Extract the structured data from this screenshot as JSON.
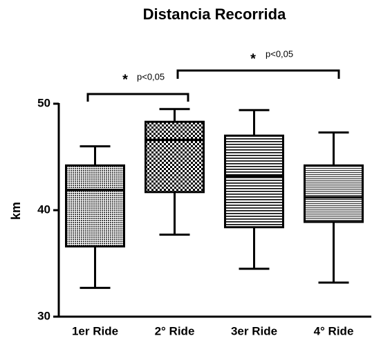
{
  "chart_data": {
    "type": "box",
    "title": "Distancia Recorrida",
    "ylabel": "km",
    "categories": [
      "1er Ride",
      "2° Ride",
      "3er Ride",
      "4° Ride"
    ],
    "min": [
      32.7,
      37.7,
      34.5,
      33.2
    ],
    "q1": [
      36.6,
      41.7,
      38.4,
      38.9
    ],
    "median": [
      41.9,
      46.6,
      43.2,
      41.2
    ],
    "q3": [
      44.2,
      48.3,
      47.0,
      44.2
    ],
    "max": [
      46.0,
      49.5,
      49.4,
      47.3
    ],
    "ylim": [
      30,
      50
    ],
    "yticks": [
      30,
      40,
      50
    ],
    "annotations": [
      {
        "star": "*",
        "text": "p<0,05"
      },
      {
        "star": "*",
        "text": "p<0,05"
      }
    ]
  }
}
